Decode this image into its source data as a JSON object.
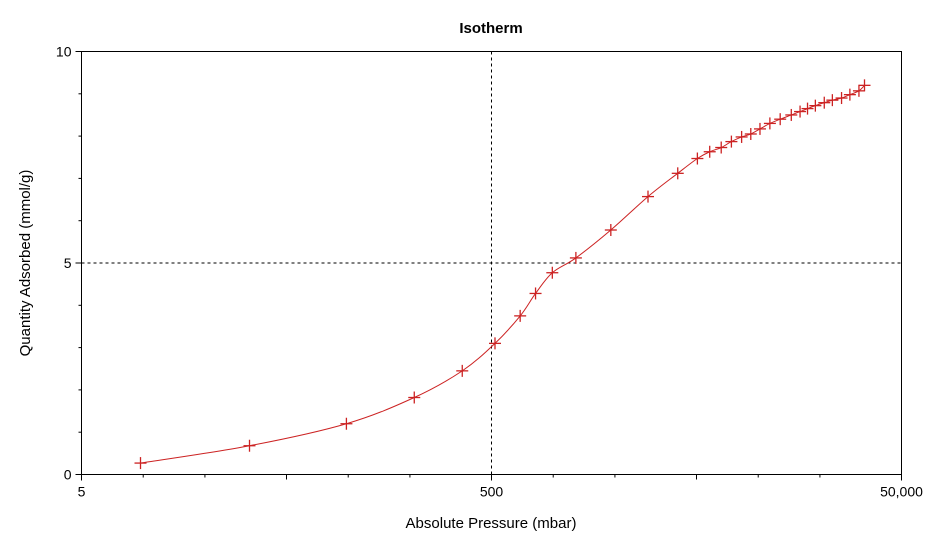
{
  "chart_data": {
    "type": "line",
    "title": "Isotherm",
    "xlabel": "Absolute Pressure (mbar)",
    "ylabel": "Quantity Adsorbed (mmol/g)",
    "x_scale": "log",
    "xlim": [
      5,
      50000
    ],
    "ylim": [
      0,
      10
    ],
    "x_ticks": [
      5,
      500,
      50000
    ],
    "x_tick_labels": [
      "5",
      "500",
      "50,000"
    ],
    "x_minor_ticks": [
      50,
      5000
    ],
    "y_ticks": [
      0,
      5,
      10
    ],
    "y_tick_labels": [
      "0",
      "5",
      "10"
    ],
    "grid": "dashed lines at x = 500 and y = 5",
    "legend": "none",
    "series_color": "#cc2222",
    "series": [
      {
        "marker": "plus",
        "x": [
          9.7,
          33,
          98,
          210,
          360,
          520,
          690,
          820,
          990,
          1290,
          1910,
          2900,
          4050,
          5050,
          5800,
          6600,
          7400,
          8300,
          9200,
          10200,
          11400,
          12800,
          14500,
          16000,
          17400,
          19000,
          21000,
          23000,
          25500,
          28000,
          31000,
          33000
        ],
        "y": [
          0.27,
          0.68,
          1.2,
          1.82,
          2.45,
          3.1,
          3.75,
          4.28,
          4.77,
          5.12,
          5.78,
          6.57,
          7.12,
          7.47,
          7.63,
          7.73,
          7.87,
          7.98,
          8.05,
          8.17,
          8.3,
          8.4,
          8.5,
          8.58,
          8.65,
          8.72,
          8.79,
          8.85,
          8.9,
          8.98,
          9.07,
          9.2
        ]
      }
    ]
  }
}
